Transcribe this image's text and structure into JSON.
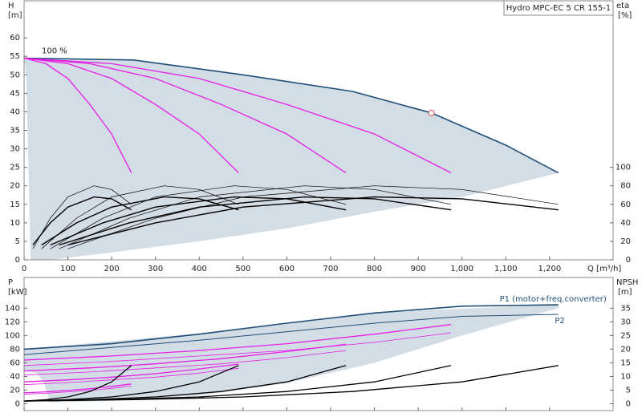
{
  "chart_data": [
    {
      "type": "line",
      "title": "Hydro MPC-EC 5 CR 155-1",
      "xlabel": "Q [m³/h]",
      "ylabel": "H",
      "yunit": "[m]",
      "y2label": "eta",
      "y2unit": "[%]",
      "annotation": "100 %",
      "xlim": [
        0,
        1345
      ],
      "ylim": [
        0,
        70
      ],
      "y2lim": [
        0,
        280
      ],
      "xticks": [
        0,
        100,
        200,
        300,
        400,
        500,
        600,
        700,
        800,
        900,
        {
          "value": 1000,
          "label": "1,000"
        },
        {
          "value": 1100,
          "label": "1,100"
        },
        {
          "value": 1200,
          "label": "1,200"
        }
      ],
      "yticks": [
        0,
        5,
        10,
        15,
        20,
        25,
        30,
        35,
        40,
        45,
        50,
        55,
        60
      ],
      "y2ticks": [
        0,
        20,
        40,
        60,
        80,
        100
      ],
      "region": {
        "color": "#d3dde6",
        "x": [
          0,
          250,
          500,
          750,
          930,
          1100,
          1220,
          1000,
          800,
          600,
          400,
          200,
          60,
          15,
          5
        ],
        "values": [
          54.5,
          54,
          50,
          45.5,
          39.7,
          31,
          23.5,
          17,
          13,
          8.5,
          5,
          2,
          0,
          0,
          50
        ]
      },
      "point": {
        "x": 930,
        "y": 39.7,
        "color": "#e06060"
      },
      "series": [
        {
          "color": "#1f4e79",
          "width": 1.6,
          "x": [
            0,
            250,
            500,
            750,
            930,
            1100,
            1220
          ],
          "values": [
            54.5,
            54,
            50,
            45.5,
            39.7,
            31,
            23.5
          ]
        },
        {
          "color": "#e61ee6",
          "width": 1.3,
          "x": [
            0,
            50,
            100,
            150,
            200,
            245
          ],
          "values": [
            54.5,
            53,
            49,
            42,
            34,
            23.5
          ]
        },
        {
          "color": "#e61ee6",
          "width": 1.3,
          "x": [
            0,
            100,
            200,
            300,
            400,
            490
          ],
          "values": [
            54.5,
            53,
            49,
            42,
            34,
            23.5
          ]
        },
        {
          "color": "#e61ee6",
          "width": 1.3,
          "x": [
            0,
            150,
            300,
            450,
            600,
            735
          ],
          "values": [
            54.5,
            53,
            49,
            42,
            34,
            23.5
          ]
        },
        {
          "color": "#e61ee6",
          "width": 1.3,
          "x": [
            0,
            200,
            400,
            600,
            800,
            975
          ],
          "values": [
            54.5,
            53,
            49,
            42,
            34,
            23.5
          ]
        },
        {
          "color": "#000000",
          "width": 1.4,
          "axis": "y2",
          "x": [
            20,
            60,
            100,
            160,
            200,
            245
          ],
          "values": [
            16,
            40,
            57,
            68,
            66,
            54
          ]
        },
        {
          "color": "#000000",
          "width": 1.4,
          "axis": "y2",
          "x": [
            40,
            120,
            200,
            320,
            400,
            490
          ],
          "values": [
            16,
            40,
            57,
            68,
            66,
            54
          ]
        },
        {
          "color": "#000000",
          "width": 1.4,
          "axis": "y2",
          "x": [
            60,
            180,
            300,
            480,
            600,
            735
          ],
          "values": [
            16,
            40,
            57,
            68,
            66,
            54
          ]
        },
        {
          "color": "#000000",
          "width": 1.4,
          "axis": "y2",
          "x": [
            80,
            240,
            400,
            640,
            800,
            975
          ],
          "values": [
            16,
            40,
            57,
            68,
            66,
            54
          ]
        },
        {
          "color": "#000000",
          "width": 1.4,
          "axis": "y2",
          "x": [
            100,
            300,
            500,
            800,
            1000,
            1220
          ],
          "values": [
            16,
            40,
            57,
            68,
            66,
            54
          ]
        },
        {
          "color": "#000000",
          "width": 0.7,
          "axis": "y2",
          "x": [
            20,
            60,
            100,
            160,
            200,
            245
          ],
          "values": [
            12,
            45,
            68,
            80,
            76,
            60
          ]
        },
        {
          "color": "#000000",
          "width": 0.7,
          "axis": "y2",
          "x": [
            40,
            120,
            200,
            320,
            400,
            490
          ],
          "values": [
            12,
            45,
            68,
            80,
            76,
            60
          ]
        },
        {
          "color": "#000000",
          "width": 0.7,
          "axis": "y2",
          "x": [
            60,
            180,
            300,
            480,
            600,
            735
          ],
          "values": [
            12,
            45,
            68,
            80,
            76,
            60
          ]
        },
        {
          "color": "#000000",
          "width": 0.7,
          "axis": "y2",
          "x": [
            80,
            240,
            400,
            640,
            800,
            975
          ],
          "values": [
            12,
            45,
            68,
            80,
            76,
            60
          ]
        },
        {
          "color": "#000000",
          "width": 0.7,
          "axis": "y2",
          "x": [
            100,
            300,
            500,
            800,
            1000,
            1220
          ],
          "values": [
            12,
            45,
            68,
            80,
            76,
            60
          ]
        }
      ]
    },
    {
      "type": "line",
      "ylabel": "P",
      "yunit": "[kW]",
      "y2label": "NPSH",
      "y2unit": "[m]",
      "xlim": [
        0,
        1345
      ],
      "ylim": [
        -10,
        185
      ],
      "y2lim": [
        -2.5,
        46.25
      ],
      "xticks": [
        0,
        100,
        200,
        300,
        400,
        500,
        600,
        700,
        800,
        900,
        1000,
        1100,
        1200
      ],
      "yticks": [
        0,
        20,
        40,
        60,
        80,
        100,
        120,
        140
      ],
      "y2ticks": [
        0,
        5,
        10,
        15,
        20,
        25,
        30,
        35
      ],
      "region": {
        "color": "#d3dde6",
        "x": [
          0,
          400,
          800,
          1220,
          1220,
          1000,
          800,
          600,
          400,
          200,
          60,
          45,
          30,
          0
        ],
        "values": [
          80,
          103,
          134,
          145,
          140,
          100,
          60,
          30,
          12,
          4,
          2,
          30,
          45,
          48
        ]
      },
      "series": [
        {
          "name": "P1 (motor+freq.converter)",
          "color": "#1f4e79",
          "width": 1.6,
          "x": [
            0,
            200,
            400,
            600,
            800,
            1000,
            1220
          ],
          "values": [
            80,
            88,
            102,
            118,
            133,
            143,
            145
          ]
        },
        {
          "name": "P2",
          "color": "#1f4e79",
          "width": 1,
          "x": [
            0,
            400,
            800,
            1000,
            1220
          ],
          "values": [
            72,
            93,
            118,
            128,
            131
          ]
        },
        {
          "color": "#e61ee6",
          "width": 1.3,
          "x": [
            0,
            50,
            100,
            150,
            200,
            245
          ],
          "values": [
            16,
            17.5,
            19.5,
            22,
            25.5,
            29
          ]
        },
        {
          "color": "#e61ee6",
          "width": 1.3,
          "x": [
            0,
            100,
            200,
            300,
            400,
            490
          ],
          "values": [
            32,
            35,
            39,
            44,
            51,
            58
          ]
        },
        {
          "color": "#e61ee6",
          "width": 1.3,
          "x": [
            0,
            150,
            300,
            450,
            600,
            735
          ],
          "values": [
            48,
            52.5,
            58.5,
            66,
            76.5,
            87
          ]
        },
        {
          "color": "#e61ee6",
          "width": 1.3,
          "x": [
            0,
            200,
            400,
            600,
            800,
            975
          ],
          "values": [
            64,
            70,
            78,
            88,
            102,
            116
          ]
        },
        {
          "color": "#e61ee6",
          "width": 0.8,
          "x": [
            0,
            50,
            100,
            150,
            200,
            245
          ],
          "values": [
            14,
            15.5,
            17.5,
            19.5,
            22.5,
            26
          ]
        },
        {
          "color": "#e61ee6",
          "width": 0.8,
          "x": [
            0,
            100,
            200,
            300,
            400,
            490
          ],
          "values": [
            28,
            31,
            35,
            39,
            45,
            52
          ]
        },
        {
          "color": "#e61ee6",
          "width": 0.8,
          "x": [
            0,
            150,
            300,
            450,
            600,
            735
          ],
          "values": [
            42,
            46.5,
            52.5,
            58.5,
            67.5,
            78
          ]
        },
        {
          "color": "#e61ee6",
          "width": 0.8,
          "x": [
            0,
            200,
            400,
            600,
            800,
            975
          ],
          "values": [
            56,
            62,
            70,
            78,
            90,
            104
          ]
        },
        {
          "color": "#000000",
          "width": 1.3,
          "axis": "y2",
          "x": [
            0,
            50,
            100,
            150,
            200,
            245
          ],
          "values": [
            1,
            1.5,
            2.5,
            4.5,
            8,
            14
          ]
        },
        {
          "color": "#000000",
          "width": 1.3,
          "axis": "y2",
          "x": [
            0,
            100,
            200,
            300,
            400,
            490
          ],
          "values": [
            1,
            1.5,
            2.5,
            4.5,
            8,
            14
          ]
        },
        {
          "color": "#000000",
          "width": 1.3,
          "axis": "y2",
          "x": [
            0,
            150,
            300,
            450,
            600,
            735
          ],
          "values": [
            1,
            1.5,
            2.5,
            4.5,
            8,
            14
          ]
        },
        {
          "color": "#000000",
          "width": 1.3,
          "axis": "y2",
          "x": [
            0,
            200,
            400,
            600,
            800,
            975
          ],
          "values": [
            1,
            1.5,
            2.5,
            4.5,
            8,
            14
          ]
        },
        {
          "color": "#000000",
          "width": 1.3,
          "axis": "y2",
          "x": [
            0,
            250,
            500,
            750,
            1000,
            1220
          ],
          "values": [
            1,
            1.5,
            2.5,
            4.5,
            8,
            14
          ]
        }
      ]
    }
  ]
}
